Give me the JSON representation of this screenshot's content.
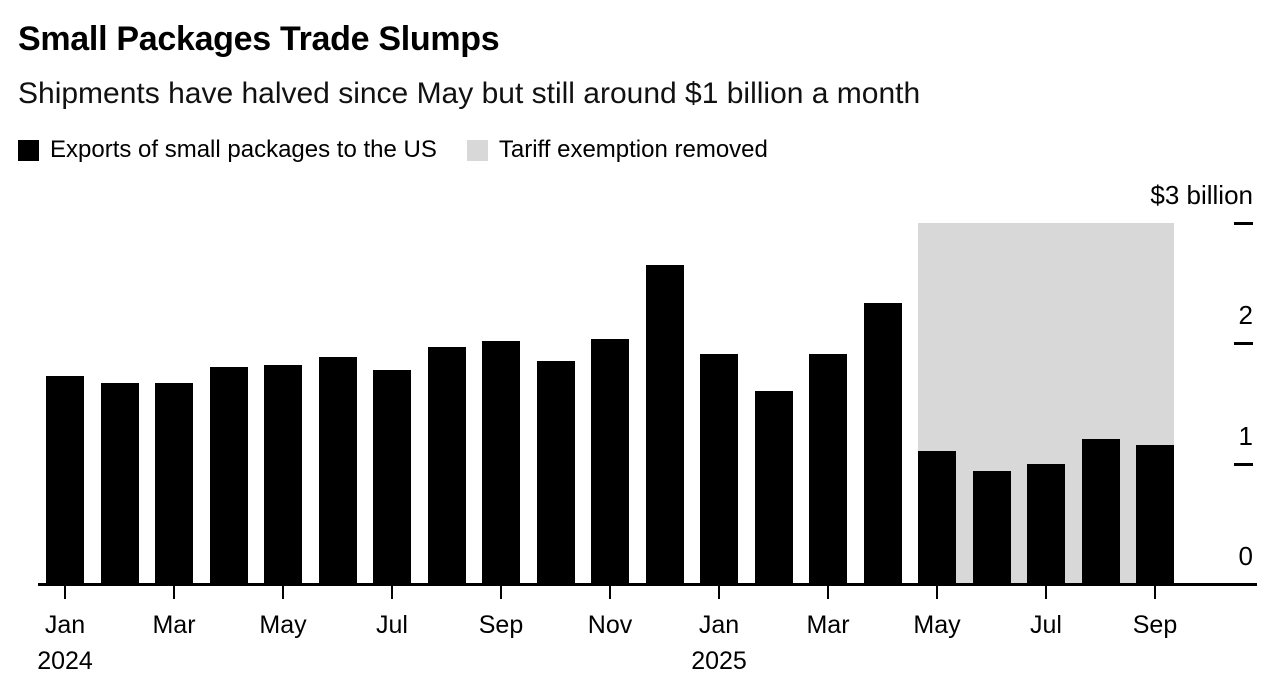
{
  "header": {
    "title": "Small Packages Trade Slumps",
    "subtitle": "Shipments have halved since May but still around $1 billion a month"
  },
  "legend": [
    {
      "label": "Exports of small packages to the US",
      "color": "#000000"
    },
    {
      "label": "Tariff exemption removed",
      "color": "#d8d8d8"
    }
  ],
  "chart_data": {
    "type": "bar",
    "title": "Small Packages Trade Slumps",
    "subtitle": "Shipments have halved since May but still around $1 billion a month",
    "unit": "USD billions per month",
    "series_name": "Exports of small packages to the US",
    "categories": [
      "Jan 2024",
      "Feb 2024",
      "Mar 2024",
      "Apr 2024",
      "May 2024",
      "Jun 2024",
      "Jul 2024",
      "Aug 2024",
      "Sep 2024",
      "Oct 2024",
      "Nov 2024",
      "Dec 2024",
      "Jan 2025",
      "Feb 2025",
      "Mar 2025",
      "Apr 2025",
      "May 2025",
      "Jun 2025",
      "Jul 2025",
      "Aug 2025",
      "Sep 2025"
    ],
    "values": [
      1.73,
      1.67,
      1.67,
      1.8,
      1.82,
      1.88,
      1.78,
      1.97,
      2.02,
      1.85,
      2.03,
      2.65,
      1.91,
      1.6,
      1.91,
      2.33,
      1.1,
      0.94,
      1.0,
      1.2,
      1.15
    ],
    "bar_color": "#000000",
    "ylim": [
      0,
      3
    ],
    "grid": false,
    "y_axis_side": "right",
    "legend_position": "top-left",
    "yticks": [
      {
        "value": 3,
        "label": "$3 billion",
        "dash": true
      },
      {
        "value": 2,
        "label": "2",
        "dash": true
      },
      {
        "value": 1,
        "label": "1",
        "dash": true
      },
      {
        "value": 0,
        "label": "0",
        "dash": false
      }
    ],
    "xticks": [
      {
        "category": "Jan 2024",
        "label": "Jan",
        "year": "2024"
      },
      {
        "category": "Mar 2024",
        "label": "Mar"
      },
      {
        "category": "May 2024",
        "label": "May"
      },
      {
        "category": "Jul 2024",
        "label": "Jul"
      },
      {
        "category": "Sep 2024",
        "label": "Sep"
      },
      {
        "category": "Nov 2024",
        "label": "Nov"
      },
      {
        "category": "Jan 2025",
        "label": "Jan",
        "year": "2025"
      },
      {
        "category": "Mar 2025",
        "label": "Mar"
      },
      {
        "category": "May 2025",
        "label": "May"
      },
      {
        "category": "Jul 2025",
        "label": "Jul"
      },
      {
        "category": "Sep 2025",
        "label": "Sep"
      }
    ],
    "highlight_region": {
      "label": "Tariff exemption removed",
      "start_category": "May 2025",
      "end_category": "Sep 2025",
      "color": "#d8d8d8"
    }
  }
}
